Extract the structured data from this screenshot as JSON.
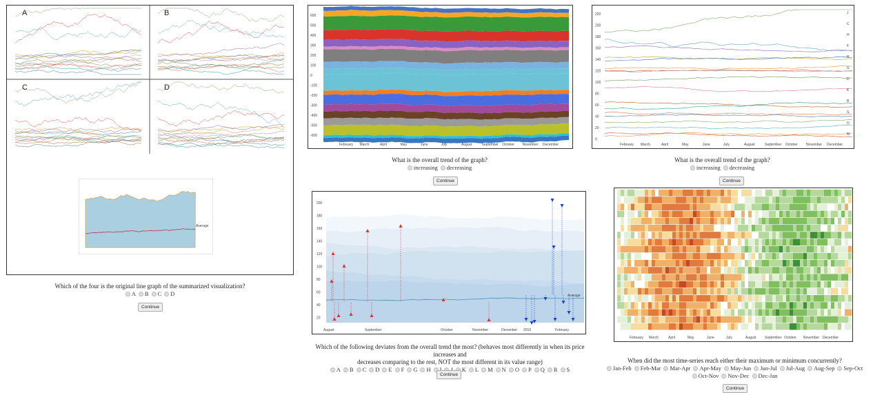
{
  "months_full": [
    "February",
    "March",
    "April",
    "May",
    "June",
    "July",
    "August",
    "September",
    "October",
    "November",
    "December"
  ],
  "panel1": {
    "subplot_labels": [
      "A",
      "B",
      "C",
      "D"
    ],
    "question": "Which of the four is the original line graph of the summarized visualization?",
    "options": [
      "A",
      "B",
      "C",
      "D"
    ],
    "continue_label": "Continue",
    "summary_label": "Average"
  },
  "panel2": {
    "y_ticks": [
      "600",
      "500",
      "400",
      "300",
      "200",
      "100",
      "0",
      "-100",
      "-200",
      "-300",
      "-400",
      "-500",
      "-600"
    ],
    "question": "What is the overall trend of the graph?",
    "options": [
      "increasing",
      "decreasing"
    ],
    "continue_label": "Continue"
  },
  "panel3": {
    "y_label": "Count",
    "y_ticks": [
      "220",
      "200",
      "180",
      "160",
      "140",
      "120",
      "100",
      "80",
      "60",
      "40",
      "20",
      "0"
    ],
    "series_labels": [
      "J",
      "C",
      "H",
      "F",
      "R",
      "G",
      "D",
      "K",
      "B",
      "S",
      "O",
      "M"
    ],
    "question": "What is the overall trend of the graph?",
    "options": [
      "increasing",
      "decreasing"
    ],
    "continue_label": "Continue"
  },
  "panel4": {
    "y_label": "Count",
    "y_ticks": [
      "200",
      "180",
      "160",
      "140",
      "120",
      "100",
      "80",
      "60",
      "40",
      "20"
    ],
    "x_ticks": [
      "August",
      "September",
      "October",
      "November",
      "December",
      "2016",
      "February"
    ],
    "average_label": "Average",
    "question_line1": "Which of the following deviates from the overall trend the most? (behaves most differently in when its price increases and",
    "question_line2": "decreases comparing to the rest, NOT the most different in its value range)",
    "options": [
      "A",
      "B",
      "C",
      "D",
      "E",
      "F",
      "G",
      "H",
      "I",
      "J",
      "K",
      "L",
      "M",
      "N",
      "O",
      "P",
      "Q",
      "R",
      "S"
    ],
    "continue_label": "Continue"
  },
  "panel5": {
    "question": "When did the most time-series reach either their maximum or minimum concurrently?",
    "options": [
      "Jan-Feb",
      "Feb-Mar",
      "Mar-Apr",
      "Apr-May",
      "May-Jun",
      "Jun-Jul",
      "Jul-Aug",
      "Aug-Sep",
      "Sep-Oct",
      "Oct-Nov",
      "Nov-Dec",
      "Dec-Jan"
    ],
    "continue_label": "Continue"
  }
}
